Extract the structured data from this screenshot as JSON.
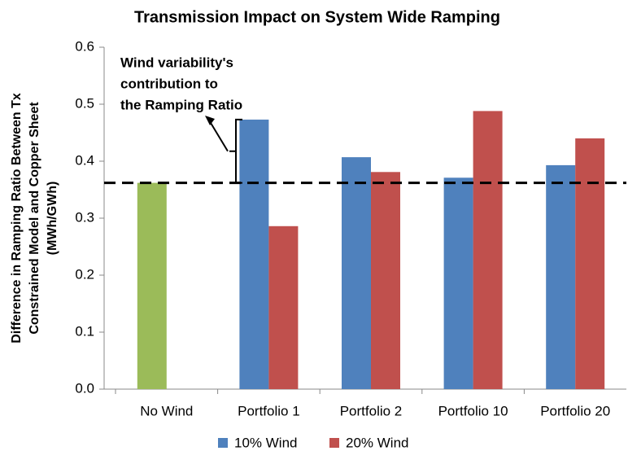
{
  "chart_data": {
    "type": "bar",
    "title": "Transmission Impact on System Wide Ramping",
    "y_label": [
      "Difference in Ramping Ratio Between Tx",
      "Constrained Model and Copper Sheet",
      "(MWh/GWh)"
    ],
    "categories": [
      "No Wind",
      "Portfolio 1",
      "Portfolio 2",
      "Portfolio 10",
      "Portfolio 20"
    ],
    "series": [
      {
        "color": "#9bbb59",
        "values": [
          0.362,
          null,
          null,
          null,
          null
        ]
      },
      {
        "name": "10% Wind",
        "color": "#4f81bd",
        "values": [
          null,
          0.473,
          0.407,
          0.371,
          0.393
        ]
      },
      {
        "name": "20% Wind",
        "color": "#c0504d",
        "values": [
          null,
          0.286,
          0.381,
          0.488,
          0.44
        ]
      }
    ],
    "reference_line": {
      "value": 0.362,
      "style": "dashed",
      "color": "#000000"
    },
    "annotation": [
      "Wind variability's",
      "contribution to",
      "the Ramping Ratio"
    ],
    "ylim": [
      0,
      0.6
    ],
    "yticks": [
      {
        "value": 0,
        "label": "0.0"
      },
      0.1,
      0.2,
      0.3,
      0.4,
      0.5,
      0.6
    ],
    "grid": false,
    "legend": "bottom"
  }
}
